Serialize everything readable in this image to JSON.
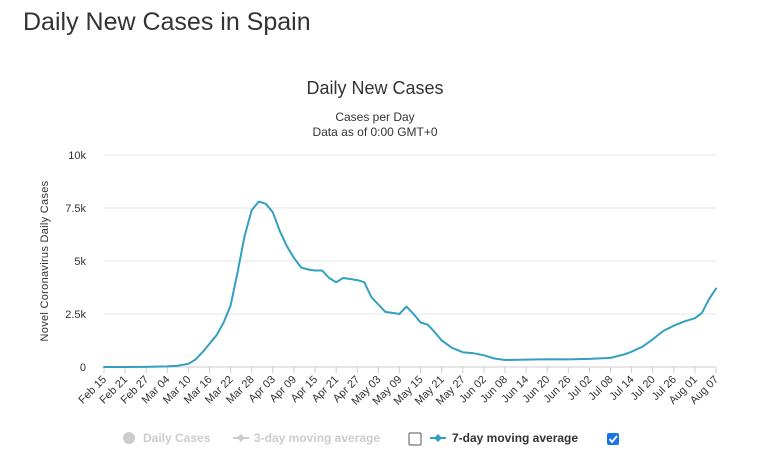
{
  "page": {
    "heading": "Daily New Cases in Spain"
  },
  "colors": {
    "series": "#33a0bf",
    "grid": "#e6e6e6",
    "inactive": "#cccccc",
    "checkbox": "#1a73e8"
  },
  "legend": {
    "items": [
      {
        "label": "Daily Cases",
        "active": false,
        "checkbox": null
      },
      {
        "label": "3-day moving average",
        "active": false,
        "checkbox": false
      },
      {
        "label": "7-day moving average",
        "active": true,
        "checkbox": true
      }
    ]
  },
  "chart_data": {
    "type": "line",
    "title": "Daily New Cases",
    "subtitle": "Cases per Day",
    "subtitle2": "Data as of 0:00 GMT+0",
    "ylabel": "Novel Coronavirus Daily Cases",
    "ylim": [
      0,
      10000
    ],
    "yticks": [
      0,
      2500,
      5000,
      7500,
      10000
    ],
    "ytick_labels": [
      "0",
      "2.5k",
      "5k",
      "7.5k",
      "10k"
    ],
    "grid": true,
    "legend_position": "bottom",
    "xtick_labels": [
      "Feb 15",
      "Feb 21",
      "Feb 27",
      "Mar 04",
      "Mar 10",
      "Mar 16",
      "Mar 22",
      "Mar 28",
      "Apr 03",
      "Apr 09",
      "Apr 15",
      "Apr 21",
      "Apr 27",
      "May 03",
      "May 09",
      "May 15",
      "May 21",
      "May 27",
      "Jun 02",
      "Jun 08",
      "Jun 14",
      "Jun 20",
      "Jun 26",
      "Jul 02",
      "Jul 08",
      "Jul 14",
      "Jul 20",
      "Jul 26",
      "Aug 01",
      "Aug 07"
    ],
    "series": [
      {
        "name": "7-day moving average",
        "x": [
          "Feb 15",
          "Feb 21",
          "Feb 27",
          "Mar 04",
          "Mar 07",
          "Mar 10",
          "Mar 12",
          "Mar 14",
          "Mar 16",
          "Mar 18",
          "Mar 20",
          "Mar 22",
          "Mar 24",
          "Mar 26",
          "Mar 28",
          "Mar 30",
          "Apr 01",
          "Apr 03",
          "Apr 05",
          "Apr 07",
          "Apr 09",
          "Apr 11",
          "Apr 13",
          "Apr 15",
          "Apr 17",
          "Apr 19",
          "Apr 21",
          "Apr 23",
          "Apr 25",
          "Apr 27",
          "Apr 29",
          "May 01",
          "May 03",
          "May 05",
          "May 07",
          "May 09",
          "May 11",
          "May 13",
          "May 15",
          "May 17",
          "May 19",
          "May 21",
          "May 24",
          "May 27",
          "May 30",
          "Jun 02",
          "Jun 05",
          "Jun 08",
          "Jun 14",
          "Jun 20",
          "Jun 26",
          "Jul 02",
          "Jul 08",
          "Jul 12",
          "Jul 14",
          "Jul 17",
          "Jul 20",
          "Jul 23",
          "Jul 26",
          "Jul 29",
          "Aug 01",
          "Aug 03",
          "Aug 05",
          "Aug 07"
        ],
        "values": [
          0,
          0,
          5,
          30,
          60,
          150,
          350,
          700,
          1100,
          1500,
          2100,
          2900,
          4500,
          6200,
          7400,
          7800,
          7700,
          7300,
          6400,
          5700,
          5150,
          4700,
          4600,
          4550,
          4550,
          4200,
          4000,
          4200,
          4150,
          4100,
          4000,
          3300,
          2950,
          2600,
          2550,
          2500,
          2850,
          2500,
          2100,
          2000,
          1650,
          1250,
          900,
          700,
          650,
          550,
          400,
          330,
          350,
          370,
          360,
          380,
          430,
          600,
          720,
          950,
          1300,
          1700,
          1950,
          2150,
          2300,
          2550,
          3200,
          3700
        ]
      }
    ]
  }
}
